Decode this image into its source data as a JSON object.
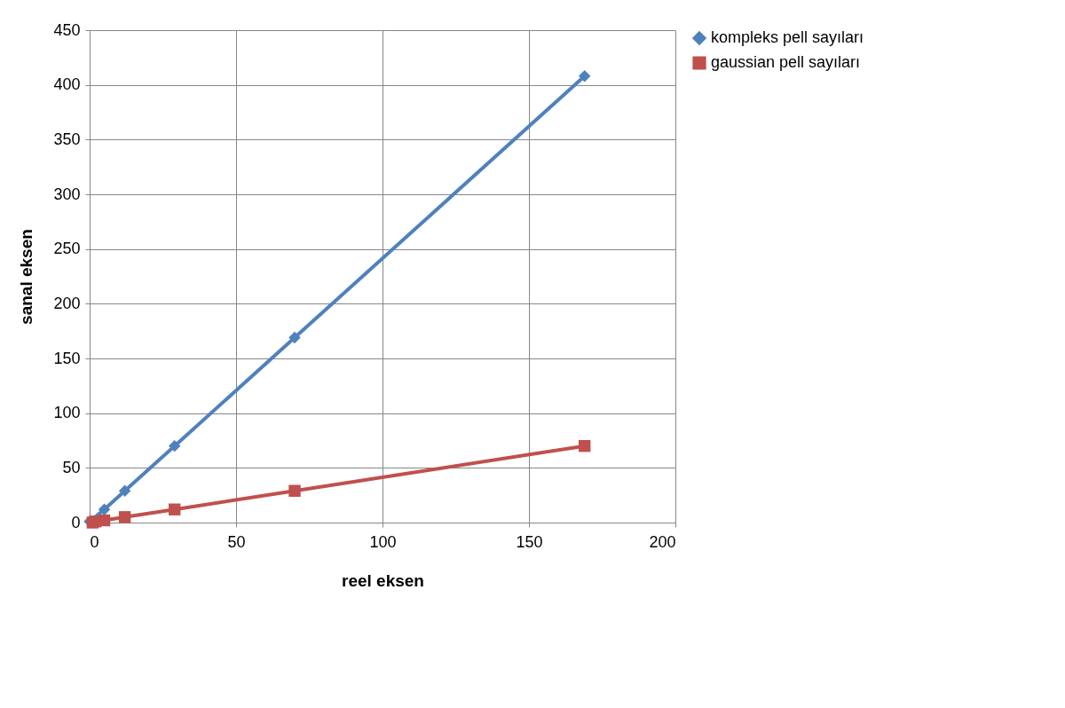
{
  "chart_data": {
    "type": "line",
    "xlabel": "reel eksen",
    "ylabel": "sanal eksen",
    "xlim": [
      0,
      200
    ],
    "xticks": [
      0,
      50,
      100,
      150,
      200
    ],
    "ylim": [
      0,
      450
    ],
    "yticks": [
      0,
      50,
      100,
      150,
      200,
      250,
      300,
      350,
      400,
      450
    ],
    "grid": true,
    "legend": "right",
    "line_style": "solid",
    "series": [
      {
        "name": "kompleks pell sayıları",
        "color": "#4f81bd",
        "marker": "diamond",
        "x": [
          0,
          5,
          12,
          29,
          70,
          169
        ],
        "values": [
          1,
          12,
          29,
          70,
          169,
          408
        ]
      },
      {
        "name": "gaussian pell sayıları",
        "color": "#c0504d",
        "marker": "square",
        "x": [
          1,
          2,
          5,
          12,
          29,
          70,
          169
        ],
        "values": [
          0,
          1,
          2,
          5,
          12,
          29,
          70
        ]
      }
    ]
  }
}
